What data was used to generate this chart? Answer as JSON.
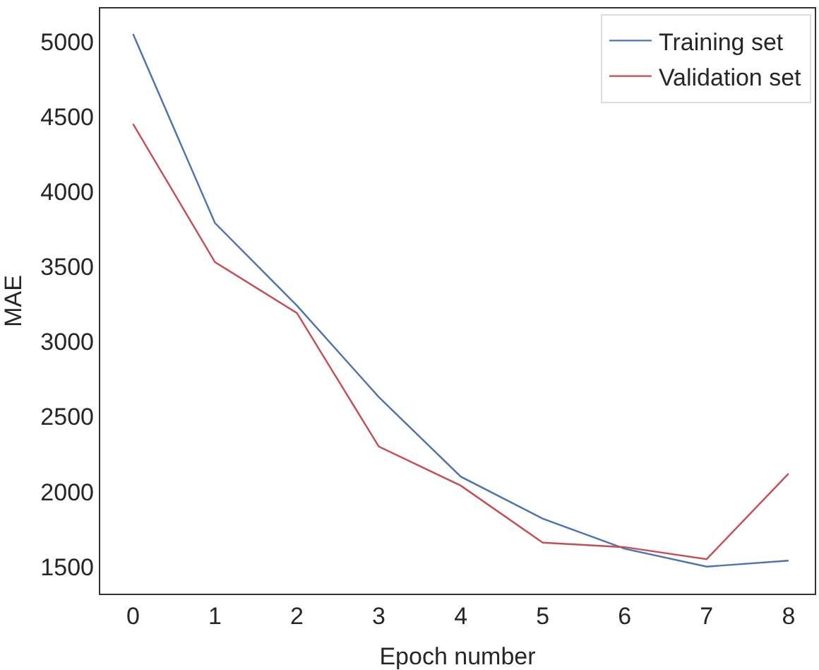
{
  "chart_data": {
    "type": "line",
    "xlabel": "Epoch number",
    "ylabel": "MAE",
    "x": [
      0,
      1,
      2,
      3,
      4,
      5,
      6,
      7,
      8
    ],
    "series": [
      {
        "name": "Training set",
        "color": "#4c72b0",
        "values": [
          5050,
          3790,
          3240,
          2630,
          2100,
          1820,
          1620,
          1500,
          1540
        ]
      },
      {
        "name": "Validation set",
        "color": "#c44e52",
        "values": [
          4450,
          3530,
          3190,
          2300,
          2040,
          1660,
          1630,
          1550,
          2120
        ]
      }
    ],
    "xlim": [
      -0.4,
      8.32
    ],
    "xticks": [
      0,
      1,
      2,
      3,
      4,
      5,
      6,
      7,
      8
    ],
    "ylim": [
      1320,
      5220
    ],
    "yticks": [
      1500,
      2000,
      2500,
      3000,
      3500,
      4000,
      4500,
      5000
    ],
    "grid": false,
    "legend": "top right",
    "marker": "none",
    "line_style": "solid"
  }
}
